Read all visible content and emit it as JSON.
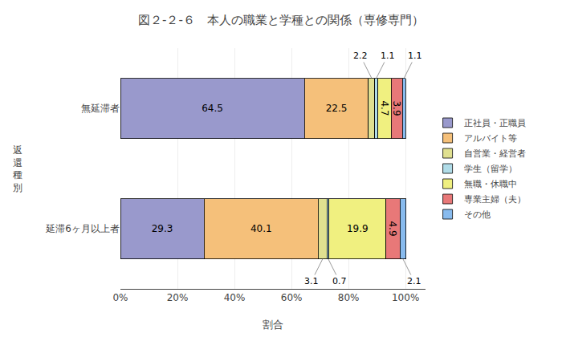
{
  "chart_data": {
    "type": "bar",
    "orientation": "horizontal",
    "stacked": true,
    "title": "図２-２-６　本人の職業と学種との関係（専修専門）",
    "xlabel": "割合",
    "ylabel": "返\n還\n種\n別",
    "categories": [
      "無延滞者",
      "延滞6ヶ月以上者"
    ],
    "series": [
      {
        "name": "正社員・正職員",
        "color": "#9999cc",
        "values": [
          64.5,
          29.3
        ]
      },
      {
        "name": "アルバイト等",
        "color": "#f5c07a",
        "values": [
          22.5,
          40.1
        ]
      },
      {
        "name": "自営業・経営者",
        "color": "#e0e090",
        "values": [
          2.2,
          3.1
        ]
      },
      {
        "name": "学生（留学）",
        "color": "#b0dce8",
        "values": [
          1.1,
          0.7
        ]
      },
      {
        "name": "無職・休職中",
        "color": "#f0f080",
        "values": [
          4.7,
          19.9
        ]
      },
      {
        "name": "専業主婦（夫）",
        "color": "#e87878",
        "values": [
          3.9,
          4.9
        ]
      },
      {
        "name": "その他",
        "color": "#88bbee",
        "values": [
          1.1,
          2.1
        ]
      }
    ],
    "xlim": [
      0,
      107
    ],
    "xticks": [
      {
        "value": 0,
        "label": "0%"
      },
      {
        "value": 20,
        "label": "20%"
      },
      {
        "value": 40,
        "label": "40%"
      },
      {
        "value": 60,
        "label": "60%"
      },
      {
        "value": 80,
        "label": "80%"
      },
      {
        "value": 100,
        "label": "100%"
      }
    ],
    "data_labels": true,
    "grid": true,
    "legend": "right"
  }
}
